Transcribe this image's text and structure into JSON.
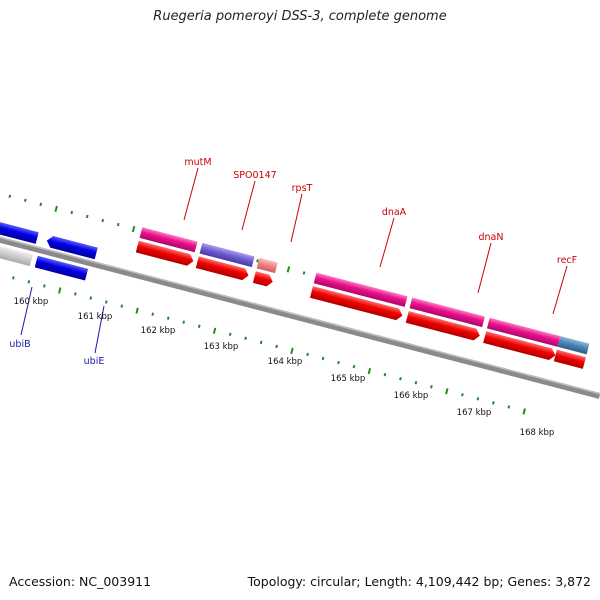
{
  "title": "Ruegeria pomeroyi DSS-3, complete genome",
  "footer": {
    "accession": "Accession: NC_003911",
    "summary": "Topology: circular; Length: 4,109,442 bp; Genes: 3,872"
  },
  "ticks": [
    "160 kbp",
    "161 kbp",
    "162 kbp",
    "163 kbp",
    "164 kbp",
    "165 kbp",
    "166 kbp",
    "167 kbp",
    "168 kbp"
  ],
  "gene_labels": {
    "forward": [
      "mutM",
      "SPO0147",
      "rpsT",
      "dnaA",
      "dnaN",
      "recF"
    ],
    "reverse": [
      "ubiB",
      "ubiE"
    ]
  },
  "colors": {
    "backbone": "#888888",
    "forward_gene": "#e8108a",
    "reverse_gene": "#0000e0",
    "cds": "#ee0000",
    "other_gene": "#6a5acd",
    "light_gene": "#f08080",
    "gray_feature": "#c8c8c8",
    "tick": "#228b22",
    "label_line_fwd": "#cc0000",
    "label_line_rev": "#1a1aa8"
  }
}
